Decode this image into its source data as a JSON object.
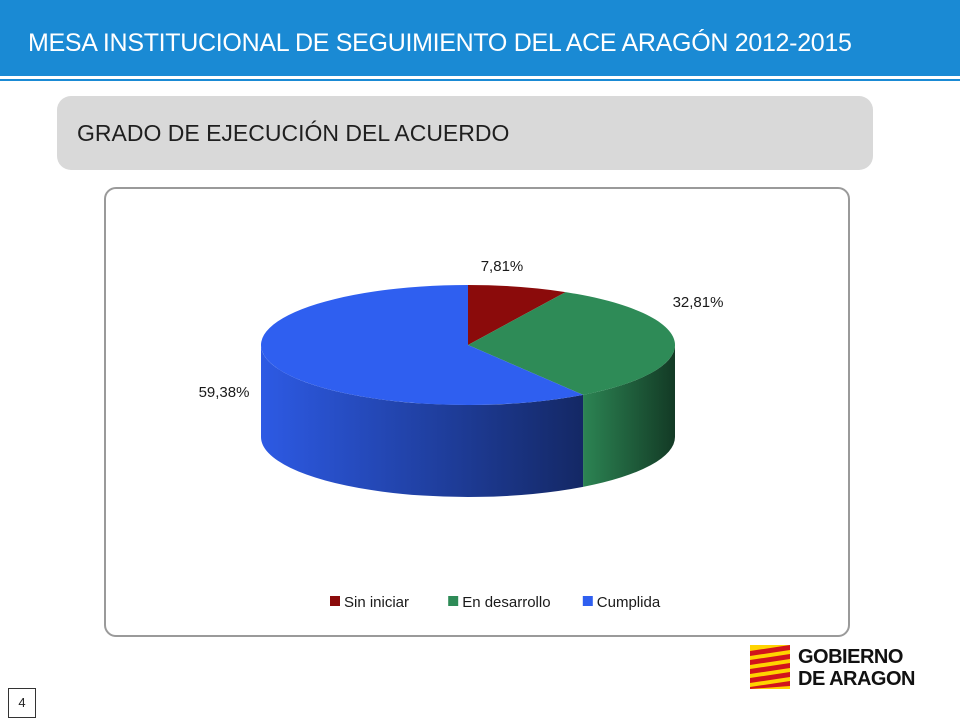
{
  "header": {
    "title": "MESA INSTITUCIONAL DE SEGUIMIENTO DEL ACE ARAGÓN 2012-2015"
  },
  "section": {
    "subtitle": "GRADO DE EJECUCIÓN DEL ACUERDO"
  },
  "chart_data": {
    "type": "pie",
    "title": "",
    "categories": [
      "Sin iniciar",
      "En desarrollo",
      "Cumplida"
    ],
    "values": [
      7.81,
      32.81,
      59.38
    ],
    "value_labels": [
      "7,81%",
      "32,81%",
      "59,38%"
    ],
    "colors": [
      "#8b0b0b",
      "#2e8b57",
      "#2f5ff0"
    ],
    "legend_position": "bottom",
    "style": "3d"
  },
  "footer": {
    "page_number": "4",
    "logo_lines": [
      "GOBIERNO",
      "DE ARAGON"
    ]
  }
}
